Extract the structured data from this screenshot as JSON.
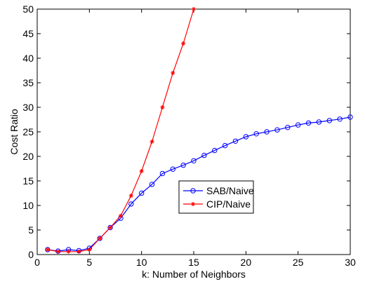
{
  "chart_data": {
    "type": "line",
    "xlabel": "k: Number of Neighbors",
    "ylabel": "Cost Ratio",
    "xlim": [
      0,
      30
    ],
    "ylim": [
      0,
      50
    ],
    "xticks": [
      0,
      5,
      10,
      15,
      20,
      25,
      30
    ],
    "yticks": [
      0,
      5,
      10,
      15,
      20,
      25,
      30,
      35,
      40,
      45,
      50
    ],
    "grid": false,
    "legend_position": "center-right",
    "series": [
      {
        "name": "SAB/Naive",
        "color": "#0000ff",
        "marker": "circle",
        "x": [
          1,
          2,
          3,
          4,
          5,
          6,
          7,
          8,
          9,
          10,
          11,
          12,
          13,
          14,
          15,
          16,
          17,
          18,
          19,
          20,
          21,
          22,
          23,
          24,
          25,
          26,
          27,
          28,
          29,
          30
        ],
        "y": [
          1.0,
          0.7,
          1.0,
          0.8,
          1.3,
          3.3,
          5.5,
          7.4,
          10.3,
          12.5,
          14.3,
          16.5,
          17.4,
          18.2,
          19.1,
          20.2,
          21.2,
          22.2,
          23.1,
          24.0,
          24.6,
          25.0,
          25.4,
          25.9,
          26.4,
          26.8,
          27.0,
          27.3,
          27.6,
          28.0
        ]
      },
      {
        "name": "CIP/Naive",
        "color": "#ff0000",
        "marker": "star",
        "x": [
          1,
          2,
          3,
          4,
          5,
          6,
          7,
          8,
          9,
          10,
          11,
          12,
          13,
          14,
          15
        ],
        "y": [
          1.0,
          0.6,
          0.6,
          0.6,
          1.0,
          3.3,
          5.5,
          7.9,
          12.0,
          17.0,
          23.0,
          30.0,
          37.0,
          43.0,
          50.0
        ]
      }
    ]
  }
}
